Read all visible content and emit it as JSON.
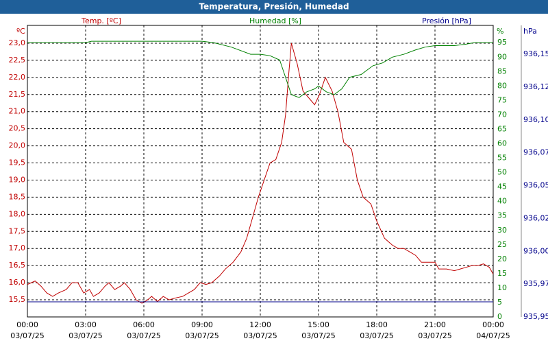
{
  "chart_data": {
    "type": "line",
    "title": "Temperatura, Presión, Humedad",
    "y_label": "Temp. [ºC]",
    "y_unit": "ºC",
    "y2_label": "Humedad [%]",
    "y2_unit": "%",
    "y3_label": "Presión [hPa]",
    "y3_unit": "hPa",
    "xlim": [
      0,
      24
    ],
    "xticks": [
      {
        "value": 0,
        "label": "00:00"
      },
      {
        "value": 3,
        "label": "03:00"
      },
      {
        "value": 6,
        "label": "06:00"
      },
      {
        "value": 9,
        "label": "09:00"
      },
      {
        "value": 12,
        "label": "12:00"
      },
      {
        "value": 15,
        "label": "15:00"
      },
      {
        "value": 18,
        "label": "18:00"
      },
      {
        "value": 21,
        "label": "21:00"
      },
      {
        "value": 24,
        "label": "00:00"
      }
    ],
    "xtick_dates": [
      "03/07/25",
      "03/07/25",
      "03/07/25",
      "03/07/25",
      "03/07/25",
      "03/07/25",
      "03/07/25",
      "03/07/25",
      "04/07/25"
    ],
    "ylim": [
      15.0,
      23.52
    ],
    "yticks": [
      {
        "value": 15.5,
        "label": "15,5"
      },
      {
        "value": 16,
        "label": "16,0"
      },
      {
        "value": 16.5,
        "label": "16,5"
      },
      {
        "value": 17,
        "label": "17,0"
      },
      {
        "value": 17.5,
        "label": "17,5"
      },
      {
        "value": 18,
        "label": "18,0"
      },
      {
        "value": 18.5,
        "label": "18,5"
      },
      {
        "value": 19,
        "label": "19,0"
      },
      {
        "value": 19.5,
        "label": "19,5"
      },
      {
        "value": 20,
        "label": "20,0"
      },
      {
        "value": 20.5,
        "label": "20,5"
      },
      {
        "value": 21,
        "label": "21,0"
      },
      {
        "value": 21.5,
        "label": "21,5"
      },
      {
        "value": 22,
        "label": "22,0"
      },
      {
        "value": 22.5,
        "label": "22,5"
      },
      {
        "value": 23,
        "label": "23,0"
      }
    ],
    "y2lim": [
      0,
      101
    ],
    "y2ticks": [
      0,
      5,
      10,
      15,
      20,
      25,
      30,
      35,
      40,
      45,
      50,
      55,
      60,
      65,
      70,
      75,
      80,
      85,
      90,
      95
    ],
    "y3lim": [
      935.95,
      936.172
    ],
    "y3ticks": [
      {
        "value": 935.95,
        "label": "935,95"
      },
      {
        "value": 935.975,
        "label": "935,97"
      },
      {
        "value": 936.0,
        "label": "936,00"
      },
      {
        "value": 936.025,
        "label": "936,02"
      },
      {
        "value": 936.05,
        "label": "936,05"
      },
      {
        "value": 936.075,
        "label": "936,07"
      },
      {
        "value": 936.1,
        "label": "936,10"
      },
      {
        "value": 936.125,
        "label": "936,12"
      },
      {
        "value": 936.15,
        "label": "936,15"
      }
    ],
    "grid": true,
    "series": [
      {
        "name": "Temp.",
        "color": "#c00000",
        "axis": "y",
        "x": [
          0,
          0.4,
          0.7,
          1.0,
          1.3,
          1.6,
          2.0,
          2.3,
          2.6,
          2.9,
          3.2,
          3.4,
          3.7,
          4.0,
          4.2,
          4.5,
          4.8,
          5.0,
          5.3,
          5.6,
          5.9,
          6.2,
          6.4,
          6.7,
          7.0,
          7.3,
          7.6,
          8.0,
          8.3,
          8.6,
          8.9,
          9.2,
          9.5,
          9.9,
          10.2,
          10.6,
          11.0,
          11.3,
          11.6,
          11.9,
          12.2,
          12.5,
          12.8,
          13.1,
          13.3,
          13.45,
          13.6,
          13.9,
          14.2,
          14.5,
          14.8,
          15.05,
          15.35,
          15.7,
          16.0,
          16.3,
          16.7,
          17.0,
          17.3,
          17.7,
          18.0,
          18.4,
          18.8,
          19.1,
          19.4,
          19.7,
          20.0,
          20.3,
          20.6,
          21.0,
          21.2,
          21.6,
          22.0,
          22.3,
          22.6,
          22.9,
          23.2,
          23.5,
          23.8,
          24.0
        ],
        "values": [
          15.95,
          16.05,
          15.9,
          15.7,
          15.6,
          15.7,
          15.8,
          16.0,
          16.0,
          15.7,
          15.8,
          15.6,
          15.7,
          15.9,
          16.0,
          15.8,
          15.9,
          16.0,
          15.8,
          15.5,
          15.4,
          15.5,
          15.6,
          15.45,
          15.6,
          15.5,
          15.55,
          15.6,
          15.7,
          15.8,
          16.0,
          15.95,
          16.0,
          16.2,
          16.4,
          16.6,
          16.9,
          17.3,
          17.9,
          18.5,
          19.0,
          19.5,
          19.6,
          20.1,
          20.9,
          22.0,
          23.0,
          22.4,
          21.6,
          21.4,
          21.2,
          21.5,
          22.0,
          21.6,
          21.0,
          20.1,
          19.9,
          19.0,
          18.5,
          18.3,
          17.8,
          17.3,
          17.1,
          17.0,
          17.0,
          16.9,
          16.8,
          16.6,
          16.6,
          16.6,
          16.4,
          16.4,
          16.35,
          16.4,
          16.45,
          16.5,
          16.5,
          16.55,
          16.45,
          16.25
        ]
      },
      {
        "name": "Humedad",
        "color": "#008000",
        "axis": "y2",
        "x": [
          0,
          3,
          3.3,
          6,
          9,
          9.6,
          10.5,
          11.5,
          12,
          12.5,
          13,
          13.3,
          13.6,
          14,
          14.4,
          14.8,
          15.0,
          15.4,
          15.8,
          16.2,
          16.6,
          17.2,
          17.8,
          18.3,
          18.8,
          19.4,
          20.0,
          20.5,
          21.0,
          22.0,
          22.6,
          23.0,
          24.0
        ],
        "values": [
          95,
          95,
          95.5,
          95.5,
          95.5,
          95,
          93.5,
          91,
          91,
          90.5,
          89,
          83,
          77,
          76,
          78,
          79,
          80,
          78,
          77,
          79,
          83,
          84,
          87,
          88,
          90,
          91,
          92.5,
          93.5,
          94,
          94,
          94.5,
          95,
          95
        ]
      },
      {
        "name": "Presión",
        "color": "#00008b",
        "axis": "y3",
        "x": [
          0,
          24
        ],
        "values": [
          935.9615,
          935.9615
        ]
      }
    ]
  }
}
